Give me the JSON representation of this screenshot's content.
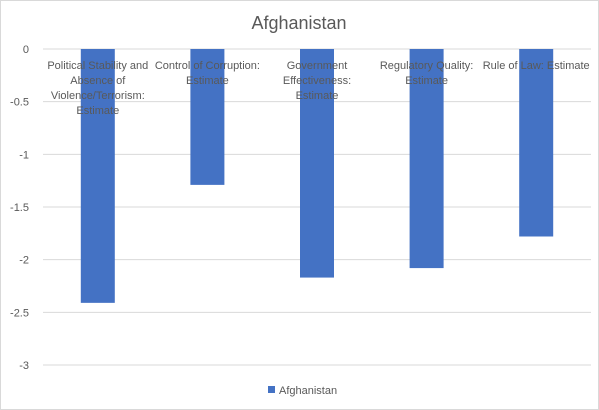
{
  "chart_data": {
    "type": "bar",
    "title": "Afghanistan",
    "categories": [
      [
        "Political Stability and",
        "Absence of",
        "Violence/Terrorism:",
        "Estimate"
      ],
      [
        "Control of Corruption:",
        "Estimate"
      ],
      [
        "Government",
        "Effectiveness:",
        "Estimate"
      ],
      [
        "Regulatory Quality:",
        "Estimate"
      ],
      [
        "Rule of Law: Estimate"
      ]
    ],
    "series": [
      {
        "name": "Afghanistan",
        "values": [
          -2.41,
          -1.29,
          -2.17,
          -2.08,
          -1.78
        ]
      }
    ],
    "yticks": [
      "0",
      "-0.5",
      "-1",
      "-1.5",
      "-2",
      "-2.5",
      "-3"
    ],
    "ylim": [
      -3,
      0
    ],
    "grid": true,
    "legend": "bottom",
    "colors": {
      "bar": "#4472c4"
    }
  }
}
